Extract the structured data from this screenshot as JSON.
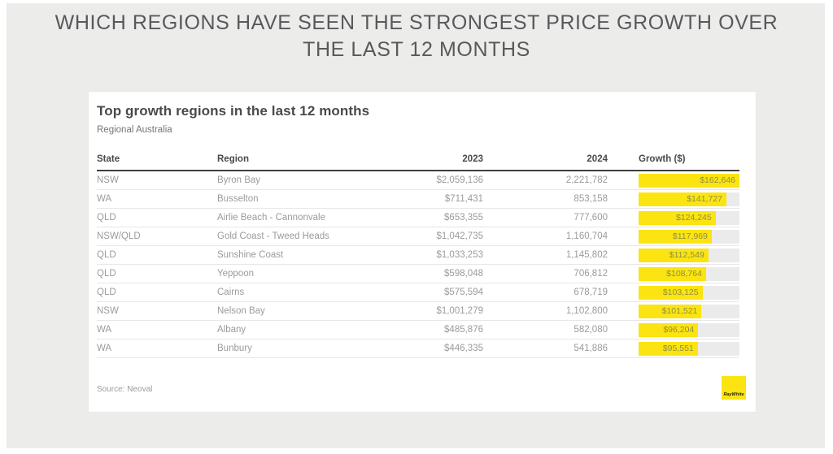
{
  "page": {
    "title_line1": "WHICH REGIONS HAVE SEEN THE STRONGEST PRICE GROWTH OVER",
    "title_line2": "THE LAST 12 MONTHS"
  },
  "card": {
    "title": "Top growth regions in the last 12 months",
    "subtitle": "Regional Australia",
    "source": "Source: Neoval",
    "logo_text": "RayWhite"
  },
  "table": {
    "columns": [
      "State",
      "Region",
      "2023",
      "2024",
      "Growth ($)"
    ],
    "bar_max": 162646,
    "rows": [
      {
        "state": "NSW",
        "region": "Byron Bay",
        "y2023": "$2,059,136",
        "y2024": "2,221,782",
        "growth_label": "$162,646",
        "growth_value": 162646
      },
      {
        "state": "WA",
        "region": "Busselton",
        "y2023": "$711,431",
        "y2024": "853,158",
        "growth_label": "$141,727",
        "growth_value": 141727
      },
      {
        "state": "QLD",
        "region": "Airlie Beach - Cannonvale",
        "y2023": "$653,355",
        "y2024": "777,600",
        "growth_label": "$124,245",
        "growth_value": 124245
      },
      {
        "state": "NSW/QLD",
        "region": "Gold Coast - Tweed Heads",
        "y2023": "$1,042,735",
        "y2024": "1,160,704",
        "growth_label": "$117,969",
        "growth_value": 117969
      },
      {
        "state": "QLD",
        "region": "Sunshine Coast",
        "y2023": "$1,033,253",
        "y2024": "1,145,802",
        "growth_label": "$112,549",
        "growth_value": 112549
      },
      {
        "state": "QLD",
        "region": "Yeppoon",
        "y2023": "$598,048",
        "y2024": "706,812",
        "growth_label": "$108,764",
        "growth_value": 108764
      },
      {
        "state": "QLD",
        "region": "Cairns",
        "y2023": "$575,594",
        "y2024": "678,719",
        "growth_label": "$103,125",
        "growth_value": 103125
      },
      {
        "state": "NSW",
        "region": "Nelson Bay",
        "y2023": "$1,001,279",
        "y2024": "1,102,800",
        "growth_label": "$101,521",
        "growth_value": 101521
      },
      {
        "state": "WA",
        "region": "Albany",
        "y2023": "$485,876",
        "y2024": "582,080",
        "growth_label": "$96,204",
        "growth_value": 96204
      },
      {
        "state": "WA",
        "region": "Bunbury",
        "y2023": "$446,335",
        "y2024": "541,886",
        "growth_label": "$95,551",
        "growth_value": 95551
      }
    ]
  },
  "colors": {
    "accent_yellow": "#FBE411",
    "bar_track": "#EBEBEB",
    "panel_bg": "#ECECEB",
    "heading_text": "#58595B",
    "table_text": "#9B9B9B",
    "header_text": "#4A4A4A"
  },
  "chart_data": {
    "type": "table",
    "title": "Top growth regions in the last 12 months",
    "subtitle": "Regional Australia",
    "main_heading": "WHICH REGIONS HAVE SEEN THE STRONGEST PRICE GROWTH OVER THE LAST 12 MONTHS",
    "columns": [
      "State",
      "Region",
      "2023",
      "2024",
      "Growth ($)"
    ],
    "rows": [
      [
        "NSW",
        "Byron Bay",
        2059136,
        2221782,
        162646
      ],
      [
        "WA",
        "Busselton",
        711431,
        853158,
        141727
      ],
      [
        "QLD",
        "Airlie Beach - Cannonvale",
        653355,
        777600,
        124245
      ],
      [
        "NSW/QLD",
        "Gold Coast - Tweed Heads",
        1042735,
        1160704,
        117969
      ],
      [
        "QLD",
        "Sunshine Coast",
        1033253,
        1145802,
        112549
      ],
      [
        "QLD",
        "Yeppoon",
        598048,
        706812,
        108764
      ],
      [
        "QLD",
        "Cairns",
        575594,
        678719,
        103125
      ],
      [
        "NSW",
        "Nelson Bay",
        1001279,
        1102800,
        101521
      ],
      [
        "WA",
        "Albany",
        485876,
        582080,
        96204
      ],
      [
        "WA",
        "Bunbury",
        446335,
        541886,
        95551
      ]
    ],
    "bar_column": "Growth ($)",
    "bar_max": 162646,
    "bar_color": "#FBE411",
    "source": "Source: Neoval"
  }
}
